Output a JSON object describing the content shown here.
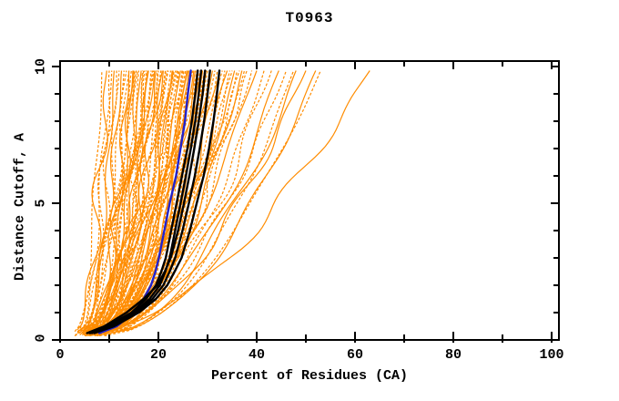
{
  "title": "T0963",
  "axes": {
    "x": {
      "label": "Percent of Residues (CA)",
      "min": 0,
      "max": 100,
      "major_ticks": [
        0,
        20,
        40,
        60,
        80,
        100
      ],
      "minor_ticks": [
        10,
        30,
        50,
        70,
        90
      ]
    },
    "y": {
      "label": "Distance Cutoff, A",
      "min": 0,
      "max": 10,
      "major_ticks": [
        0,
        5,
        10
      ],
      "minor_ticks": [
        1,
        2,
        3,
        4,
        6,
        7,
        8,
        9
      ]
    }
  },
  "colors": {
    "ensemble": "#ff8c00",
    "highlight_blue": "#2222cc",
    "highlight_black": "#000000",
    "frame": "#000000",
    "background": "#ffffff"
  },
  "chart_data": {
    "type": "line",
    "title": "T0963",
    "xlabel": "Percent of Residues (CA)",
    "ylabel": "Distance Cutoff, A",
    "xlim": [
      0,
      100
    ],
    "ylim": [
      0,
      10
    ],
    "grid": false,
    "legend": "none",
    "cutoffs": [
      0.25,
      0.5,
      1,
      1.5,
      2,
      2.5,
      3,
      4,
      5,
      6,
      7,
      8,
      9,
      9.85
    ],
    "series": [
      {
        "name": "model-highlight-blue",
        "color": "#2222cc",
        "style": "solid",
        "width": 2.4,
        "percents": [
          8.0,
          11.5,
          15.0,
          17.0,
          18.5,
          19.4,
          20.1,
          21.2,
          22.3,
          23.6,
          24.5,
          25.4,
          26.0,
          26.6
        ]
      },
      {
        "name": "model-highlight-black-1",
        "color": "#000000",
        "style": "solid",
        "width": 2.4,
        "percents": [
          6.0,
          9.5,
          14.5,
          17.5,
          19.5,
          20.6,
          21.5,
          22.6,
          23.7,
          24.8,
          25.9,
          26.8,
          27.5,
          28.0
        ]
      },
      {
        "name": "model-highlight-black-2",
        "color": "#000000",
        "style": "solid",
        "width": 2.4,
        "percents": [
          6.2,
          10.0,
          15.0,
          18.2,
          20.3,
          21.4,
          22.3,
          23.4,
          24.5,
          25.6,
          26.6,
          27.5,
          28.2,
          28.7
        ]
      },
      {
        "name": "model-highlight-black-3",
        "color": "#000000",
        "style": "solid",
        "width": 2.4,
        "percents": [
          5.5,
          9.0,
          13.5,
          17.0,
          19.8,
          21.3,
          22.5,
          24.0,
          25.2,
          26.3,
          27.3,
          28.2,
          29.0,
          29.5
        ]
      },
      {
        "name": "model-highlight-black-4",
        "color": "#000000",
        "style": "solid",
        "width": 2.4,
        "percents": [
          6.5,
          10.5,
          15.5,
          18.8,
          21.0,
          22.3,
          23.4,
          24.9,
          26.2,
          27.4,
          28.4,
          29.3,
          30.0,
          30.5
        ]
      },
      {
        "name": "model-highlight-black-5",
        "color": "#000000",
        "style": "solid",
        "width": 2.4,
        "percents": [
          7.0,
          11.0,
          16.0,
          19.5,
          21.8,
          23.3,
          24.7,
          26.4,
          27.8,
          29.2,
          30.3,
          31.2,
          31.9,
          32.4
        ]
      }
    ],
    "ensemble": {
      "name": "server-model-curves",
      "color": "#ff8c00",
      "count": 98,
      "curve_params_format": [
        "percent_at_cutoff0",
        "percent_at_cutoff10",
        "shape_exponent",
        "dashed"
      ],
      "curves": [
        [
          3,
          8.5,
          0.45,
          1
        ],
        [
          3.5,
          9.5,
          0.5,
          0
        ],
        [
          4,
          10,
          0.4,
          1
        ],
        [
          3,
          10.5,
          0.55,
          1
        ],
        [
          4.5,
          11,
          0.45,
          0
        ],
        [
          3.5,
          11.5,
          0.5,
          1
        ],
        [
          5,
          12,
          0.4,
          1
        ],
        [
          4,
          12.5,
          0.5,
          0
        ],
        [
          3,
          13,
          0.45,
          1
        ],
        [
          5,
          13.5,
          0.55,
          1
        ],
        [
          4.5,
          14,
          0.4,
          0
        ],
        [
          3.5,
          14,
          0.5,
          1
        ],
        [
          4,
          14.5,
          0.45,
          1
        ],
        [
          5,
          15,
          0.5,
          0
        ],
        [
          6,
          15.5,
          0.4,
          1
        ],
        [
          4.5,
          16,
          0.5,
          1
        ],
        [
          5.5,
          16.5,
          0.45,
          0
        ],
        [
          6,
          17,
          0.5,
          1
        ],
        [
          4,
          17.5,
          0.4,
          1
        ],
        [
          5,
          18,
          0.5,
          0
        ],
        [
          6.5,
          18.5,
          0.45,
          1
        ],
        [
          4.5,
          19,
          0.5,
          1
        ],
        [
          5.5,
          19.5,
          0.4,
          0
        ],
        [
          6,
          20,
          0.5,
          1
        ],
        [
          7,
          20.5,
          0.45,
          1
        ],
        [
          4,
          21,
          0.5,
          0
        ],
        [
          5,
          21.5,
          0.4,
          1
        ],
        [
          6,
          22,
          0.5,
          1
        ],
        [
          4.5,
          14.8,
          0.35,
          0
        ],
        [
          5.2,
          15.8,
          0.42,
          1
        ],
        [
          6.2,
          16.8,
          0.48,
          1
        ],
        [
          4.8,
          17.8,
          0.38,
          0
        ],
        [
          5.8,
          18.8,
          0.44,
          1
        ],
        [
          6.8,
          19.8,
          0.5,
          1
        ],
        [
          4.2,
          20.8,
          0.42,
          0
        ],
        [
          5.4,
          21.4,
          0.47,
          1
        ],
        [
          6.4,
          15.2,
          0.52,
          1
        ],
        [
          5.6,
          17.2,
          0.36,
          1
        ],
        [
          4.6,
          19.2,
          0.5,
          0
        ],
        [
          6.6,
          21.8,
          0.44,
          1
        ],
        [
          5,
          22.5,
          0.45,
          1
        ],
        [
          6,
          23,
          0.5,
          0
        ],
        [
          7,
          23.5,
          0.4,
          1
        ],
        [
          5.5,
          24,
          0.5,
          1
        ],
        [
          6.5,
          24.5,
          0.45,
          0
        ],
        [
          7.5,
          25,
          0.5,
          1
        ],
        [
          5,
          25.5,
          0.4,
          1
        ],
        [
          6,
          26,
          0.5,
          0
        ],
        [
          7,
          26.5,
          0.45,
          1
        ],
        [
          5.5,
          27,
          0.5,
          1
        ],
        [
          6.5,
          27.5,
          0.4,
          0
        ],
        [
          7.5,
          28,
          0.5,
          1
        ],
        [
          8,
          28.5,
          0.45,
          1
        ],
        [
          5,
          29,
          0.5,
          0
        ],
        [
          6,
          29.5,
          0.4,
          1
        ],
        [
          7,
          30,
          0.5,
          1
        ],
        [
          5.2,
          22.8,
          0.37,
          0
        ],
        [
          6.2,
          23.8,
          0.43,
          1
        ],
        [
          7.2,
          24.8,
          0.49,
          1
        ],
        [
          5.8,
          25.8,
          0.39,
          0
        ],
        [
          6.8,
          26.8,
          0.45,
          1
        ],
        [
          7.8,
          27.8,
          0.51,
          1
        ],
        [
          5.4,
          28.8,
          0.41,
          0
        ],
        [
          6.4,
          29.4,
          0.47,
          1
        ],
        [
          7.4,
          23.2,
          0.53,
          1
        ],
        [
          5.6,
          25.2,
          0.37,
          1
        ],
        [
          6.6,
          27.2,
          0.5,
          0
        ],
        [
          7.6,
          29.8,
          0.44,
          1
        ],
        [
          8.2,
          24.2,
          0.46,
          1
        ],
        [
          8.4,
          26.2,
          0.4,
          0
        ],
        [
          5.5,
          30.5,
          0.45,
          1
        ],
        [
          6.5,
          31,
          0.5,
          0
        ],
        [
          7.5,
          31.5,
          0.4,
          1
        ],
        [
          8,
          32,
          0.5,
          1
        ],
        [
          6,
          32.5,
          0.45,
          0
        ],
        [
          7,
          33,
          0.5,
          1
        ],
        [
          8.5,
          33.5,
          0.4,
          1
        ],
        [
          6.5,
          34,
          0.5,
          0
        ],
        [
          7.5,
          34.5,
          0.45,
          1
        ],
        [
          8,
          35,
          0.55,
          1
        ],
        [
          6,
          35.5,
          0.45,
          0
        ],
        [
          7,
          36,
          0.5,
          1
        ],
        [
          8.5,
          36.5,
          0.55,
          1
        ],
        [
          6.5,
          37,
          0.45,
          0
        ],
        [
          7.5,
          37.5,
          0.5,
          1
        ],
        [
          9,
          38,
          0.55,
          1
        ],
        [
          6,
          39,
          0.5,
          1
        ],
        [
          7,
          40,
          0.55,
          0
        ],
        [
          8,
          41.5,
          0.5,
          1
        ],
        [
          9,
          43,
          0.55,
          1
        ],
        [
          7.5,
          44.5,
          0.5,
          0
        ],
        [
          8.5,
          46,
          0.55,
          1
        ],
        [
          9.5,
          47.5,
          0.5,
          1
        ],
        [
          10,
          48,
          0.55,
          0
        ],
        [
          7,
          50,
          0.55,
          0
        ],
        [
          8,
          52,
          0.5,
          0
        ],
        [
          9,
          53,
          0.55,
          1
        ],
        [
          8,
          63,
          0.58,
          0
        ]
      ]
    }
  }
}
